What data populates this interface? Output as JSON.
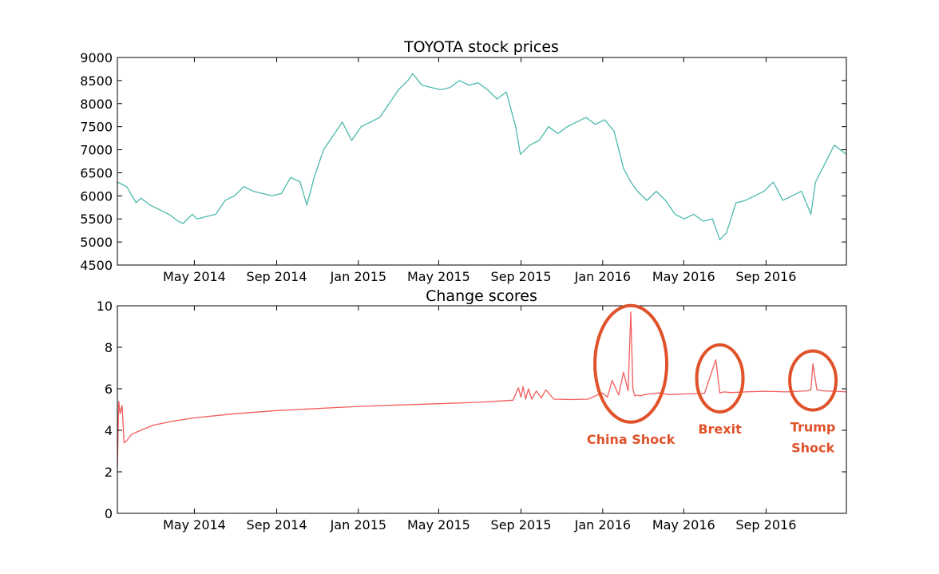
{
  "colors": {
    "price_line": "#4cb9ad",
    "score_line": "#f25c5c",
    "annotation": "#e0522a",
    "axes": "#000000",
    "background": "#ffffff"
  },
  "chart_data": [
    {
      "type": "line",
      "title": "TOYOTA stock prices",
      "xlabel": "",
      "ylabel": "",
      "x_range": [
        "2014-01-06",
        "2016-12-30"
      ],
      "x_ticks": [
        {
          "date": "2014-05-01",
          "label": "May 2014"
        },
        {
          "date": "2014-09-01",
          "label": "Sep 2014"
        },
        {
          "date": "2015-01-01",
          "label": "Jan 2015"
        },
        {
          "date": "2015-05-01",
          "label": "May 2015"
        },
        {
          "date": "2015-09-01",
          "label": "Sep 2015"
        },
        {
          "date": "2016-01-01",
          "label": "Jan 2016"
        },
        {
          "date": "2016-05-01",
          "label": "May 2016"
        },
        {
          "date": "2016-09-01",
          "label": "Sep 2016"
        }
      ],
      "ylim": [
        4500,
        9000
      ],
      "y_ticks": [
        4500,
        5000,
        5500,
        6000,
        6500,
        7000,
        7500,
        8000,
        8500,
        9000
      ],
      "grid": false,
      "series": [
        {
          "x": [
            "2014-01-06",
            "2014-01-20",
            "2014-02-03",
            "2014-02-10",
            "2014-02-24",
            "2014-03-10",
            "2014-03-24",
            "2014-04-07",
            "2014-04-14",
            "2014-04-28",
            "2014-05-05",
            "2014-05-19",
            "2014-06-02",
            "2014-06-16",
            "2014-06-30",
            "2014-07-14",
            "2014-07-28",
            "2014-08-11",
            "2014-08-25",
            "2014-09-08",
            "2014-09-22",
            "2014-10-06",
            "2014-10-16",
            "2014-10-27",
            "2014-11-10",
            "2014-11-24",
            "2014-12-08",
            "2014-12-22",
            "2015-01-05",
            "2015-01-19",
            "2015-02-02",
            "2015-02-16",
            "2015-03-02",
            "2015-03-16",
            "2015-03-23",
            "2015-04-06",
            "2015-04-20",
            "2015-05-04",
            "2015-05-18",
            "2015-06-01",
            "2015-06-15",
            "2015-06-29",
            "2015-07-13",
            "2015-07-27",
            "2015-08-10",
            "2015-08-24",
            "2015-08-31",
            "2015-09-14",
            "2015-09-28",
            "2015-10-12",
            "2015-10-26",
            "2015-11-09",
            "2015-11-23",
            "2015-12-07",
            "2015-12-21",
            "2016-01-04",
            "2016-01-18",
            "2016-02-01",
            "2016-02-12",
            "2016-02-22",
            "2016-03-07",
            "2016-03-21",
            "2016-04-04",
            "2016-04-18",
            "2016-05-02",
            "2016-05-16",
            "2016-05-30",
            "2016-06-13",
            "2016-06-24",
            "2016-07-04",
            "2016-07-18",
            "2016-08-01",
            "2016-08-15",
            "2016-08-29",
            "2016-09-12",
            "2016-09-26",
            "2016-10-10",
            "2016-10-24",
            "2016-11-07",
            "2016-11-14",
            "2016-11-28",
            "2016-12-12",
            "2016-12-30"
          ],
          "values": [
            6300,
            6200,
            5850,
            5950,
            5800,
            5700,
            5600,
            5450,
            5400,
            5600,
            5500,
            5550,
            5600,
            5900,
            6000,
            6200,
            6100,
            6050,
            6000,
            6050,
            6400,
            6300,
            5800,
            6400,
            7000,
            7300,
            7600,
            7200,
            7500,
            7600,
            7700,
            8000,
            8300,
            8500,
            8650,
            8400,
            8350,
            8300,
            8350,
            8500,
            8400,
            8450,
            8300,
            8100,
            8250,
            7500,
            6900,
            7100,
            7200,
            7500,
            7350,
            7500,
            7600,
            7700,
            7550,
            7650,
            7400,
            6600,
            6300,
            6100,
            5900,
            6100,
            5900,
            5600,
            5500,
            5600,
            5450,
            5500,
            5050,
            5200,
            5850,
            5900,
            6000,
            6100,
            6300,
            5900,
            6000,
            6100,
            5600,
            6300,
            6700,
            7100,
            6900
          ]
        }
      ]
    },
    {
      "type": "line",
      "title": "Change scores",
      "xlabel": "",
      "ylabel": "",
      "x_range": [
        "2014-01-06",
        "2016-12-30"
      ],
      "x_ticks": [
        {
          "date": "2014-05-01",
          "label": "May 2014"
        },
        {
          "date": "2014-09-01",
          "label": "Sep 2014"
        },
        {
          "date": "2015-01-01",
          "label": "Jan 2015"
        },
        {
          "date": "2015-05-01",
          "label": "May 2015"
        },
        {
          "date": "2015-09-01",
          "label": "Sep 2015"
        },
        {
          "date": "2016-01-01",
          "label": "Jan 2016"
        },
        {
          "date": "2016-05-01",
          "label": "May 2016"
        },
        {
          "date": "2016-09-01",
          "label": "Sep 2016"
        }
      ],
      "ylim": [
        0,
        10
      ],
      "y_ticks": [
        0,
        2,
        4,
        6,
        8,
        10
      ],
      "grid": false,
      "series": [
        {
          "x": [
            "2014-01-06",
            "2014-01-08",
            "2014-01-10",
            "2014-01-13",
            "2014-01-16",
            "2014-01-20",
            "2014-01-27",
            "2014-02-10",
            "2014-03-01",
            "2014-04-01",
            "2014-05-01",
            "2014-07-01",
            "2014-09-01",
            "2014-11-01",
            "2015-01-01",
            "2015-03-01",
            "2015-05-01",
            "2015-07-01",
            "2015-08-20",
            "2015-08-28",
            "2015-09-01",
            "2015-09-04",
            "2015-09-08",
            "2015-09-12",
            "2015-09-17",
            "2015-09-24",
            "2015-10-01",
            "2015-10-08",
            "2015-10-20",
            "2015-11-15",
            "2015-12-10",
            "2015-12-31",
            "2016-01-08",
            "2016-01-15",
            "2016-01-25",
            "2016-02-01",
            "2016-02-08",
            "2016-02-12",
            "2016-02-15",
            "2016-02-18",
            "2016-02-22",
            "2016-02-26",
            "2016-03-01",
            "2016-03-10",
            "2016-03-25",
            "2016-04-10",
            "2016-05-01",
            "2016-06-01",
            "2016-06-18",
            "2016-06-24",
            "2016-06-30",
            "2016-07-10",
            "2016-08-01",
            "2016-09-01",
            "2016-10-01",
            "2016-11-01",
            "2016-11-07",
            "2016-11-10",
            "2016-11-16",
            "2016-11-25",
            "2016-12-15",
            "2016-12-30"
          ],
          "values": [
            2.2,
            5.4,
            4.8,
            5.2,
            3.4,
            3.5,
            3.8,
            4.0,
            4.25,
            4.45,
            4.6,
            4.8,
            4.95,
            5.05,
            5.15,
            5.22,
            5.28,
            5.35,
            5.45,
            6.05,
            5.6,
            6.1,
            5.5,
            6.0,
            5.5,
            5.9,
            5.55,
            5.95,
            5.5,
            5.48,
            5.5,
            5.8,
            5.6,
            6.4,
            5.7,
            6.8,
            5.9,
            9.7,
            6.0,
            5.65,
            5.7,
            5.65,
            5.7,
            5.75,
            5.8,
            5.72,
            5.75,
            5.78,
            7.4,
            5.8,
            5.85,
            5.82,
            5.85,
            5.88,
            5.85,
            5.9,
            5.95,
            7.2,
            5.95,
            5.9,
            5.88,
            5.85
          ]
        }
      ],
      "annotations": [
        {
          "label": "China Shock",
          "date": "2016-02-12",
          "value": 7.2
        },
        {
          "label": "Brexit",
          "date": "2016-06-24",
          "value": 6.5
        },
        {
          "label": "Trump Shock",
          "label_lines": [
            "Trump",
            "Shock"
          ],
          "date": "2016-11-10",
          "value": 6.4
        }
      ]
    }
  ]
}
